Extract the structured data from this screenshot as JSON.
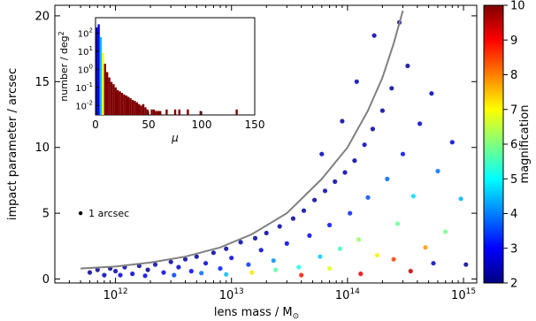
{
  "chart_data": [
    {
      "type": "scatter",
      "xlabel": "lens mass / M",
      "xlabel_subscript": "⊙",
      "ylabel": "impact parameter / arcsec",
      "xscale": "log",
      "xlim": [
        300000000000.0,
        1300000000000000.0
      ],
      "ylim": [
        -0.3,
        20.8
      ],
      "xticks": [
        {
          "value": 1000000000000.0,
          "base": "10",
          "exp": "12"
        },
        {
          "value": 10000000000000.0,
          "base": "10",
          "exp": "13"
        },
        {
          "value": 100000000000000.0,
          "base": "10",
          "exp": "14"
        },
        {
          "value": 1000000000000000.0,
          "base": "10",
          "exp": "15"
        }
      ],
      "yticks": [
        0,
        5,
        10,
        15,
        20
      ],
      "colorbar": {
        "label": "magnification",
        "min": 2,
        "max": 10,
        "ticks": [
          2,
          3,
          4,
          5,
          6,
          7,
          8,
          9,
          10
        ],
        "colormap": [
          "#00007f",
          "#0000ff",
          "#007fff",
          "#00ffff",
          "#7fff7f",
          "#ffff00",
          "#ff7f00",
          "#ff0000",
          "#7f0000"
        ]
      },
      "envelope_curve": {
        "color": "#808080",
        "points": [
          [
            500000000000.0,
            0.8
          ],
          [
            1000000000000.0,
            0.95
          ],
          [
            2000000000000.0,
            1.25
          ],
          [
            4000000000000.0,
            1.7
          ],
          [
            8000000000000.0,
            2.4
          ],
          [
            15000000000000.0,
            3.4
          ],
          [
            30000000000000.0,
            5.0
          ],
          [
            60000000000000.0,
            7.6
          ],
          [
            100000000000000.0,
            10.0
          ],
          [
            150000000000000.0,
            12.8
          ],
          [
            200000000000000.0,
            15.3
          ],
          [
            250000000000000.0,
            17.9
          ],
          [
            300000000000000.0,
            20.4
          ]
        ]
      },
      "scale_marker": {
        "label": "1 arcsec",
        "x": 500000000000.0,
        "y": 5.0
      },
      "series": [
        {
          "points": [
            [
              600000000000.0,
              0.5,
              2.3
            ],
            [
              700000000000.0,
              0.7,
              2.2
            ],
            [
              800000000000.0,
              0.3,
              2.5
            ],
            [
              900000000000.0,
              0.8,
              2.1
            ],
            [
              1000000000000.0,
              0.6,
              2.4
            ],
            [
              1200000000000.0,
              0.9,
              2.2
            ],
            [
              1400000000000.0,
              0.4,
              2.6
            ],
            [
              1600000000000.0,
              1.0,
              2.3
            ],
            [
              1900000000000.0,
              0.7,
              2.1
            ],
            [
              2200000000000.0,
              1.1,
              2.4
            ],
            [
              2600000000000.0,
              0.5,
              2.8
            ],
            [
              3000000000000.0,
              1.3,
              2.2
            ],
            [
              3500000000000.0,
              0.9,
              2.5
            ],
            [
              4000000000000.0,
              1.5,
              2.3
            ],
            [
              4500000000000.0,
              0.6,
              3.0
            ],
            [
              5000000000000.0,
              1.7,
              2.2
            ],
            [
              6000000000000.0,
              1.2,
              2.6
            ],
            [
              7000000000000.0,
              2.0,
              2.3
            ],
            [
              8000000000000.0,
              0.8,
              3.2
            ],
            [
              9000000000000.0,
              2.3,
              2.2
            ],
            [
              10000000000000.0,
              1.6,
              2.7
            ],
            [
              12000000000000.0,
              2.8,
              2.3
            ],
            [
              14000000000000.0,
              1.1,
              3.4
            ],
            [
              16000000000000.0,
              3.1,
              2.2
            ],
            [
              18000000000000.0,
              2.2,
              2.6
            ],
            [
              20000000000000.0,
              3.5,
              2.3
            ],
            [
              23000000000000.0,
              1.4,
              4.1
            ],
            [
              26000000000000.0,
              4.0,
              2.4
            ],
            [
              30000000000000.0,
              2.7,
              2.8
            ],
            [
              34000000000000.0,
              4.6,
              2.2
            ],
            [
              38000000000000.0,
              0.9,
              5.2
            ],
            [
              42000000000000.0,
              5.2,
              2.3
            ],
            [
              47000000000000.0,
              3.3,
              2.9
            ],
            [
              52000000000000.0,
              6.0,
              2.2
            ],
            [
              58000000000000.0,
              1.7,
              4.6
            ],
            [
              64000000000000.0,
              6.7,
              2.4
            ],
            [
              70000000000000.0,
              4.1,
              3.1
            ],
            [
              78000000000000.0,
              7.4,
              2.2
            ],
            [
              86000000000000.0,
              2.3,
              5.5
            ],
            [
              95000000000000.0,
              8.1,
              2.3
            ],
            [
              105000000000000.0,
              5.0,
              3.3
            ],
            [
              115000000000000.0,
              9.0,
              2.2
            ],
            [
              125000000000000.0,
              3.0,
              6.2
            ],
            [
              140000000000000.0,
              10.2,
              2.4
            ],
            [
              150000000000000.0,
              6.2,
              3.6
            ],
            [
              165000000000000.0,
              11.4,
              2.2
            ],
            [
              180000000000000.0,
              1.8,
              7.1
            ],
            [
              200000000000000.0,
              12.8,
              2.3
            ],
            [
              220000000000000.0,
              7.6,
              3.8
            ],
            [
              240000000000000.0,
              14.5,
              2.2
            ],
            [
              270000000000000.0,
              4.2,
              5.8
            ],
            [
              300000000000000.0,
              9.5,
              3.1
            ],
            [
              330000000000000.0,
              16.2,
              2.3
            ],
            [
              370000000000000.0,
              6.3,
              4.7
            ],
            [
              420000000000000.0,
              11.8,
              2.6
            ],
            [
              470000000000000.0,
              2.4,
              7.8
            ],
            [
              530000000000000.0,
              14.1,
              2.4
            ],
            [
              600000000000000.0,
              8.2,
              3.9
            ],
            [
              700000000000000.0,
              3.6,
              5.9
            ],
            [
              800000000000000.0,
              10.4,
              2.7
            ],
            [
              950000000000000.0,
              6.1,
              4.4
            ],
            [
              1050000000000000.0,
              1.1,
              2.2
            ],
            [
              550000000000000.0,
              1.2,
              2.5
            ],
            [
              350000000000000.0,
              0.6,
              9.5
            ],
            [
              250000000000000.0,
              1.5,
              8.5
            ],
            [
              130000000000000.0,
              0.4,
              9.2
            ],
            [
              70000000000000.0,
              0.8,
              6.8
            ],
            [
              40000000000000.0,
              0.3,
              8.8
            ],
            [
              24000000000000.0,
              0.7,
              5.7
            ],
            [
              15000000000000.0,
              0.5,
              7.2
            ],
            [
              9000000000000.0,
              0.35,
              4.5
            ],
            [
              5500000000000.0,
              0.45,
              3.8
            ],
            [
              3200000000000.0,
              0.3,
              3.5
            ],
            [
              1800000000000.0,
              0.25,
              2.9
            ],
            [
              1100000000000.0,
              0.3,
              2.7
            ],
            [
              170000000000000.0,
              18.5,
              2.3
            ],
            [
              280000000000000.0,
              19.5,
              2.2
            ],
            [
              120000000000000.0,
              15.0,
              2.4
            ],
            [
              90000000000000.0,
              12.0,
              2.3
            ],
            [
              60000000000000.0,
              9.5,
              2.5
            ]
          ]
        }
      ]
    },
    {
      "type": "bar",
      "xlabel": "μ",
      "ylabel": "number / deg",
      "ylabel_superscript": "2",
      "xlim": [
        0,
        150
      ],
      "yscale": "log",
      "ylim": [
        0.003,
        700
      ],
      "xticks": [
        0,
        50,
        100,
        150
      ],
      "yticks": [
        {
          "value": 100,
          "base": "10",
          "exp": "2"
        },
        {
          "value": 10,
          "base": "10",
          "exp": "1"
        },
        {
          "value": 1,
          "base": "10",
          "exp": "0"
        },
        {
          "value": 0.1,
          "base": "10",
          "exp": "-1"
        },
        {
          "value": 0.01,
          "base": "10",
          "exp": "-2"
        }
      ],
      "bar_width": 2,
      "bars": [
        {
          "x": 0,
          "value": 200,
          "color": "#00007f"
        },
        {
          "x": 2,
          "value": 300,
          "color": "#0000ff"
        },
        {
          "x": 4,
          "value": 60,
          "color": "#00bfff"
        },
        {
          "x": 6,
          "value": 8,
          "color": "#ffff00"
        },
        {
          "x": 8,
          "value": 2.0,
          "color": "#7f0000"
        },
        {
          "x": 10,
          "value": 0.7,
          "color": "#7f0000"
        },
        {
          "x": 12,
          "value": 0.35,
          "color": "#7f0000"
        },
        {
          "x": 14,
          "value": 0.2,
          "color": "#7f0000"
        },
        {
          "x": 16,
          "value": 0.15,
          "color": "#7f0000"
        },
        {
          "x": 18,
          "value": 0.1,
          "color": "#7f0000"
        },
        {
          "x": 20,
          "value": 0.07,
          "color": "#7f0000"
        },
        {
          "x": 22,
          "value": 0.06,
          "color": "#7f0000"
        },
        {
          "x": 24,
          "value": 0.05,
          "color": "#7f0000"
        },
        {
          "x": 26,
          "value": 0.04,
          "color": "#7f0000"
        },
        {
          "x": 28,
          "value": 0.035,
          "color": "#7f0000"
        },
        {
          "x": 30,
          "value": 0.03,
          "color": "#7f0000"
        },
        {
          "x": 32,
          "value": 0.025,
          "color": "#7f0000"
        },
        {
          "x": 34,
          "value": 0.02,
          "color": "#7f0000"
        },
        {
          "x": 36,
          "value": 0.018,
          "color": "#7f0000"
        },
        {
          "x": 38,
          "value": 0.015,
          "color": "#7f0000"
        },
        {
          "x": 40,
          "value": 0.012,
          "color": "#7f0000"
        },
        {
          "x": 42,
          "value": 0.01,
          "color": "#7f0000"
        },
        {
          "x": 44,
          "value": 0.012,
          "color": "#7f0000"
        },
        {
          "x": 46,
          "value": 0.008,
          "color": "#7f0000"
        },
        {
          "x": 48,
          "value": 0.006,
          "color": "#7f0000"
        },
        {
          "x": 52,
          "value": 0.006,
          "color": "#7f0000"
        },
        {
          "x": 54,
          "value": 0.006,
          "color": "#7f0000"
        },
        {
          "x": 56,
          "value": 0.005,
          "color": "#7f0000"
        },
        {
          "x": 58,
          "value": 0.005,
          "color": "#7f0000"
        },
        {
          "x": 60,
          "value": 0.005,
          "color": "#7f0000"
        },
        {
          "x": 66,
          "value": 0.006,
          "color": "#7f0000"
        },
        {
          "x": 74,
          "value": 0.006,
          "color": "#7f0000"
        },
        {
          "x": 78,
          "value": 0.006,
          "color": "#7f0000"
        },
        {
          "x": 86,
          "value": 0.006,
          "color": "#7f0000"
        },
        {
          "x": 98,
          "value": 0.005,
          "color": "#7f0000"
        },
        {
          "x": 132,
          "value": 0.006,
          "color": "#7f0000"
        }
      ]
    }
  ]
}
